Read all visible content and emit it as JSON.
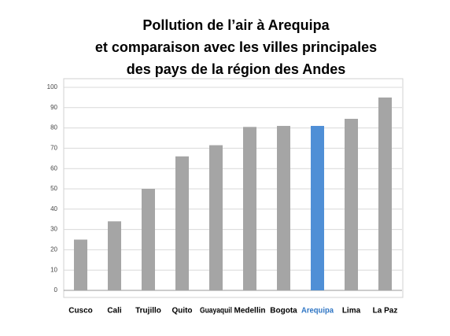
{
  "chart_data": {
    "type": "bar",
    "title": [
      "Pollution de l’air à Arequipa",
      "et comparaison avec les villes principales",
      "des pays de la région des Andes"
    ],
    "categories": [
      "Cusco",
      "Cali",
      "Trujillo",
      "Quito",
      "Guayaquil",
      "Medellin",
      "Bogota",
      "Arequipa",
      "Lima",
      "La Paz"
    ],
    "values": [
      25,
      34,
      50,
      66,
      71.5,
      80.5,
      81,
      81,
      84.5,
      95
    ],
    "colors": [
      "#a5a5a5",
      "#a5a5a5",
      "#a5a5a5",
      "#a5a5a5",
      "#a5a5a5",
      "#a5a5a5",
      "#a5a5a5",
      "#4f8fd6",
      "#a5a5a5",
      "#a5a5a5"
    ],
    "label_colors": [
      "#000000",
      "#000000",
      "#000000",
      "#000000",
      "#000000",
      "#000000",
      "#000000",
      "#2e75c4",
      "#000000",
      "#000000"
    ],
    "ylim": [
      0,
      100
    ],
    "yticks": [
      0,
      10,
      20,
      30,
      40,
      50,
      60,
      70,
      80,
      90,
      100
    ],
    "grid": true
  }
}
